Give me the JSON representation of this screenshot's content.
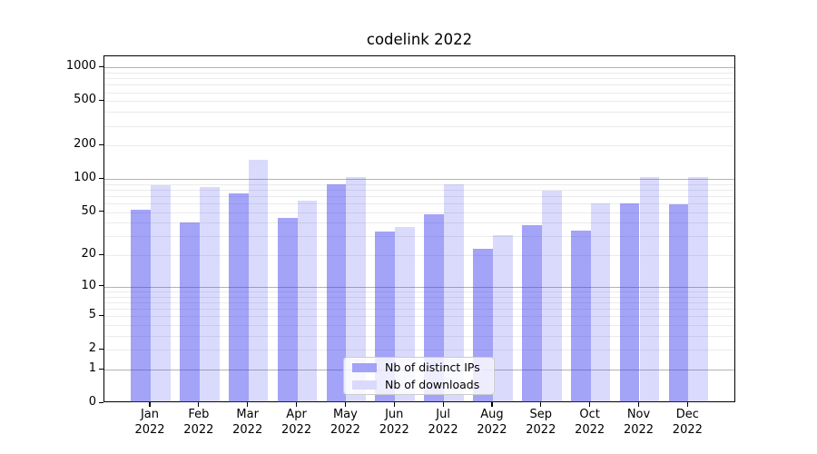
{
  "window": {
    "background": "#ffffff",
    "text_color": "#000000"
  },
  "chart_data": {
    "type": "bar",
    "title": "codelink 2022",
    "months": [
      "Jan",
      "Feb",
      "Mar",
      "Apr",
      "May",
      "Jun",
      "Jul",
      "Aug",
      "Sep",
      "Oct",
      "Nov",
      "Dec"
    ],
    "year": "2022",
    "series": [
      {
        "name": "Nb of distinct IPs",
        "color_hex": "#a2a2f8",
        "color_rgba": "rgba(50,50,240,0.45)",
        "values": [
          53,
          40,
          74,
          44,
          90,
          33,
          48,
          23,
          38,
          34,
          60,
          59
        ]
      },
      {
        "name": "Nb of downloads",
        "color_hex": "#dadafc",
        "color_rgba": "rgba(50,50,240,0.18)",
        "values": [
          88,
          84,
          150,
          64,
          105,
          37,
          89,
          31,
          79,
          60,
          105,
          104
        ]
      }
    ],
    "yscale": "log1p",
    "yticks": [
      0,
      1,
      2,
      5,
      10,
      20,
      50,
      100,
      200,
      500,
      1000
    ],
    "ylim": [
      0,
      1260
    ],
    "xlabel": "",
    "ylabel": "",
    "grid": {
      "enabled": true,
      "major_color": "#b3b3b3",
      "minor_color": "#ebebeb"
    },
    "legend": {
      "position": "lower center",
      "frame_color": "#cccccc"
    }
  }
}
